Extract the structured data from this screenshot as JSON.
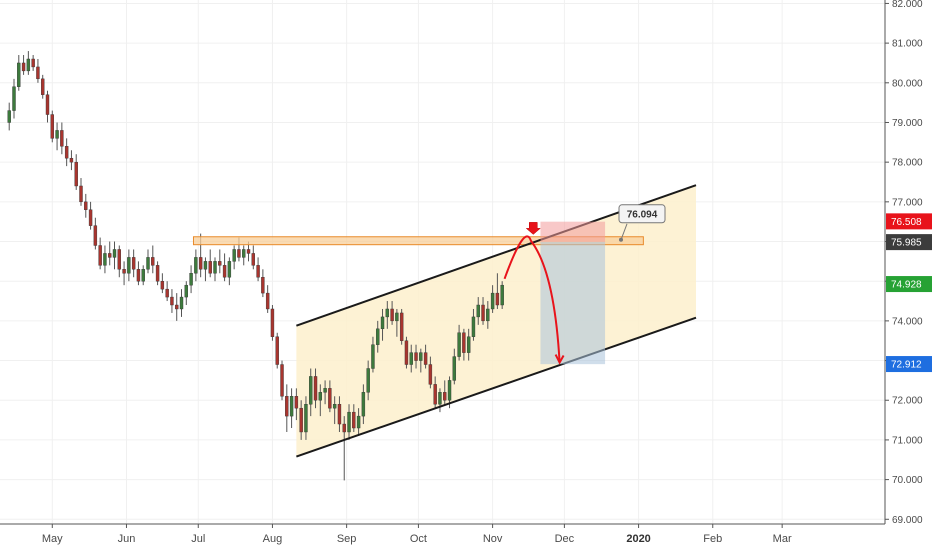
{
  "chart_data": {
    "type": "candlestick",
    "y_axis": {
      "position": "right",
      "range": [
        69.0,
        82.0
      ],
      "ticks": [
        "82.000",
        "81.000",
        "80.000",
        "79.000",
        "78.000",
        "77.000",
        "76.000",
        "75.000",
        "74.000",
        "73.000",
        "72.000",
        "71.000",
        "70.000",
        "69.000"
      ]
    },
    "x_axis": {
      "labels": [
        {
          "text": "May",
          "day": 16,
          "bold": false
        },
        {
          "text": "Jun",
          "day": 47,
          "bold": false
        },
        {
          "text": "Jul",
          "day": 77,
          "bold": false
        },
        {
          "text": "Aug",
          "day": 108,
          "bold": false
        },
        {
          "text": "Sep",
          "day": 139,
          "bold": false
        },
        {
          "text": "Oct",
          "day": 169,
          "bold": false
        },
        {
          "text": "Nov",
          "day": 200,
          "bold": false
        },
        {
          "text": "Dec",
          "day": 230,
          "bold": false
        },
        {
          "text": "2020",
          "day": 261,
          "bold": true
        },
        {
          "text": "Feb",
          "day": 292,
          "bold": false
        },
        {
          "text": "Mar",
          "day": 321,
          "bold": false
        }
      ]
    },
    "price_badges": [
      {
        "value": "76.508",
        "price": 76.508,
        "color": "#e8131b"
      },
      {
        "value": "75.985",
        "price": 75.985,
        "color": "#3c3c3c"
      },
      {
        "value": "74.928",
        "price": 74.928,
        "color": "#26a234"
      },
      {
        "value": "72.912",
        "price": 72.912,
        "color": "#1e6ee0"
      }
    ],
    "callout": {
      "value": "76.094",
      "price": 76.094,
      "day": 257
    },
    "resistance_zone": {
      "price_low": 75.92,
      "price_high": 76.12,
      "day_start": 75,
      "day_end": 263
    },
    "channel": {
      "upper": {
        "start": [
          118,
          73.88
        ],
        "end": [
          285,
          77.42
        ]
      },
      "lower": {
        "start": [
          118,
          70.58
        ],
        "end": [
          285,
          74.08
        ]
      }
    },
    "projection": {
      "risk_box": {
        "day_start": 220,
        "day_end": 247,
        "price_top": 76.5,
        "price_bottom": 75.99
      },
      "target_box": {
        "day_start": 220,
        "day_end": 247,
        "price_top": 75.99,
        "price_bottom": 72.91
      },
      "arrow_marker": {
        "day": 217,
        "price": 76.18
      },
      "curve": [
        [
          205,
          75.06
        ],
        [
          216,
          76.02
        ],
        [
          225,
          75.0
        ],
        [
          228,
          72.95
        ]
      ]
    },
    "candles": [
      [
        -2,
        79.0,
        79.5,
        78.8,
        79.3
      ],
      [
        0,
        79.3,
        80.1,
        79.1,
        79.9
      ],
      [
        2,
        79.9,
        80.7,
        79.8,
        80.5
      ],
      [
        4,
        80.5,
        80.7,
        80.2,
        80.3
      ],
      [
        6,
        80.3,
        80.8,
        80.2,
        80.6
      ],
      [
        8,
        80.6,
        80.7,
        80.3,
        80.4
      ],
      [
        10,
        80.4,
        80.6,
        80.0,
        80.1
      ],
      [
        12,
        80.1,
        80.2,
        79.6,
        79.7
      ],
      [
        14,
        79.7,
        79.8,
        79.0,
        79.2
      ],
      [
        16,
        79.2,
        79.3,
        78.5,
        78.6
      ],
      [
        18,
        78.6,
        79.0,
        78.3,
        78.8
      ],
      [
        20,
        78.8,
        79.0,
        78.2,
        78.4
      ],
      [
        22,
        78.4,
        78.6,
        77.9,
        78.1
      ],
      [
        24,
        78.1,
        78.3,
        77.8,
        78.0
      ],
      [
        26,
        78.0,
        78.2,
        77.3,
        77.4
      ],
      [
        28,
        77.4,
        77.6,
        76.9,
        77.0
      ],
      [
        30,
        77.0,
        77.2,
        76.6,
        76.8
      ],
      [
        32,
        76.8,
        77.0,
        76.3,
        76.4
      ],
      [
        34,
        76.4,
        76.6,
        75.8,
        75.9
      ],
      [
        36,
        75.9,
        76.1,
        75.3,
        75.4
      ],
      [
        38,
        75.4,
        75.9,
        75.2,
        75.7
      ],
      [
        40,
        75.7,
        76.0,
        75.4,
        75.6
      ],
      [
        42,
        75.6,
        76.0,
        75.3,
        75.8
      ],
      [
        44,
        75.8,
        75.9,
        75.1,
        75.3
      ],
      [
        46,
        75.3,
        75.5,
        74.9,
        75.2
      ],
      [
        48,
        75.2,
        75.8,
        75.0,
        75.6
      ],
      [
        50,
        75.6,
        75.8,
        75.1,
        75.3
      ],
      [
        52,
        75.3,
        75.5,
        74.9,
        75.0
      ],
      [
        54,
        75.0,
        75.4,
        74.9,
        75.3
      ],
      [
        56,
        75.3,
        75.8,
        75.2,
        75.6
      ],
      [
        58,
        75.6,
        75.9,
        75.2,
        75.4
      ],
      [
        60,
        75.4,
        75.5,
        74.9,
        75.0
      ],
      [
        62,
        75.0,
        75.2,
        74.7,
        74.8
      ],
      [
        64,
        74.8,
        75.0,
        74.5,
        74.6
      ],
      [
        66,
        74.6,
        74.8,
        74.2,
        74.4
      ],
      [
        68,
        74.4,
        74.7,
        74.0,
        74.3
      ],
      [
        70,
        74.3,
        74.8,
        74.1,
        74.6
      ],
      [
        72,
        74.6,
        75.0,
        74.4,
        74.9
      ],
      [
        74,
        74.9,
        75.4,
        74.7,
        75.2
      ],
      [
        76,
        75.2,
        75.8,
        75.0,
        75.6
      ],
      [
        78,
        75.6,
        76.2,
        75.1,
        75.3
      ],
      [
        80,
        75.3,
        75.6,
        75.0,
        75.5
      ],
      [
        82,
        75.5,
        75.8,
        75.1,
        75.2
      ],
      [
        84,
        75.2,
        75.6,
        75.0,
        75.5
      ],
      [
        86,
        75.5,
        75.8,
        75.2,
        75.4
      ],
      [
        88,
        75.4,
        75.7,
        75.0,
        75.1
      ],
      [
        90,
        75.1,
        75.6,
        74.9,
        75.5
      ],
      [
        92,
        75.5,
        75.9,
        75.3,
        75.8
      ],
      [
        94,
        75.8,
        76.1,
        75.5,
        75.6
      ],
      [
        96,
        75.6,
        75.9,
        75.4,
        75.8
      ],
      [
        98,
        75.8,
        76.0,
        75.5,
        75.7
      ],
      [
        100,
        75.7,
        75.9,
        75.3,
        75.4
      ],
      [
        102,
        75.4,
        75.6,
        75.0,
        75.1
      ],
      [
        104,
        75.1,
        75.3,
        74.6,
        74.7
      ],
      [
        106,
        74.7,
        74.9,
        74.2,
        74.3
      ],
      [
        108,
        74.3,
        74.4,
        73.5,
        73.6
      ],
      [
        110,
        73.6,
        73.7,
        72.8,
        72.9
      ],
      [
        112,
        72.9,
        73.0,
        72.0,
        72.1
      ],
      [
        114,
        72.1,
        72.4,
        71.2,
        71.6
      ],
      [
        116,
        71.6,
        72.3,
        71.3,
        72.1
      ],
      [
        118,
        72.1,
        72.3,
        71.5,
        71.8
      ],
      [
        120,
        71.8,
        72.0,
        71.0,
        71.2
      ],
      [
        122,
        71.2,
        72.1,
        71.0,
        71.9
      ],
      [
        124,
        71.9,
        72.8,
        71.6,
        72.6
      ],
      [
        126,
        72.6,
        72.8,
        71.8,
        72.0
      ],
      [
        128,
        72.0,
        72.4,
        71.6,
        72.2
      ],
      [
        130,
        72.2,
        72.5,
        71.9,
        72.3
      ],
      [
        132,
        72.3,
        72.5,
        71.7,
        71.8
      ],
      [
        134,
        71.8,
        72.1,
        71.4,
        71.9
      ],
      [
        136,
        71.9,
        72.1,
        71.2,
        71.4
      ],
      [
        138,
        71.4,
        71.6,
        69.98,
        71.2
      ],
      [
        140,
        71.2,
        71.9,
        71.0,
        71.7
      ],
      [
        142,
        71.7,
        71.9,
        71.2,
        71.3
      ],
      [
        144,
        71.3,
        71.8,
        71.1,
        71.6
      ],
      [
        146,
        71.6,
        72.4,
        71.4,
        72.2
      ],
      [
        148,
        72.2,
        73.0,
        72.0,
        72.8
      ],
      [
        150,
        72.8,
        73.6,
        72.7,
        73.4
      ],
      [
        152,
        73.4,
        74.0,
        73.2,
        73.8
      ],
      [
        154,
        73.8,
        74.3,
        73.5,
        74.1
      ],
      [
        156,
        74.1,
        74.5,
        73.8,
        74.3
      ],
      [
        158,
        74.3,
        74.5,
        73.9,
        74.0
      ],
      [
        160,
        74.0,
        74.3,
        73.6,
        74.2
      ],
      [
        162,
        74.2,
        74.3,
        73.4,
        73.5
      ],
      [
        164,
        73.5,
        73.6,
        72.8,
        72.9
      ],
      [
        166,
        72.9,
        73.4,
        72.7,
        73.2
      ],
      [
        168,
        73.2,
        73.4,
        72.8,
        73.0
      ],
      [
        170,
        73.0,
        73.3,
        72.7,
        73.2
      ],
      [
        172,
        73.2,
        73.4,
        72.8,
        72.9
      ],
      [
        174,
        72.9,
        73.1,
        72.3,
        72.4
      ],
      [
        176,
        72.4,
        72.6,
        71.8,
        71.9
      ],
      [
        178,
        71.9,
        72.3,
        71.7,
        72.2
      ],
      [
        180,
        72.2,
        72.5,
        71.9,
        72.0
      ],
      [
        182,
        72.0,
        72.6,
        71.8,
        72.5
      ],
      [
        184,
        72.5,
        73.3,
        72.4,
        73.1
      ],
      [
        186,
        73.1,
        73.9,
        73.0,
        73.7
      ],
      [
        188,
        73.7,
        73.8,
        73.0,
        73.2
      ],
      [
        190,
        73.2,
        73.8,
        73.0,
        73.6
      ],
      [
        192,
        73.6,
        74.3,
        73.5,
        74.1
      ],
      [
        194,
        74.1,
        74.6,
        73.9,
        74.4
      ],
      [
        196,
        74.4,
        74.6,
        73.9,
        74.0
      ],
      [
        198,
        74.0,
        74.5,
        73.8,
        74.3
      ],
      [
        200,
        74.3,
        74.9,
        74.2,
        74.7
      ],
      [
        202,
        74.7,
        75.2,
        74.3,
        74.4
      ],
      [
        204,
        74.4,
        75.0,
        74.3,
        74.9
      ]
    ]
  }
}
